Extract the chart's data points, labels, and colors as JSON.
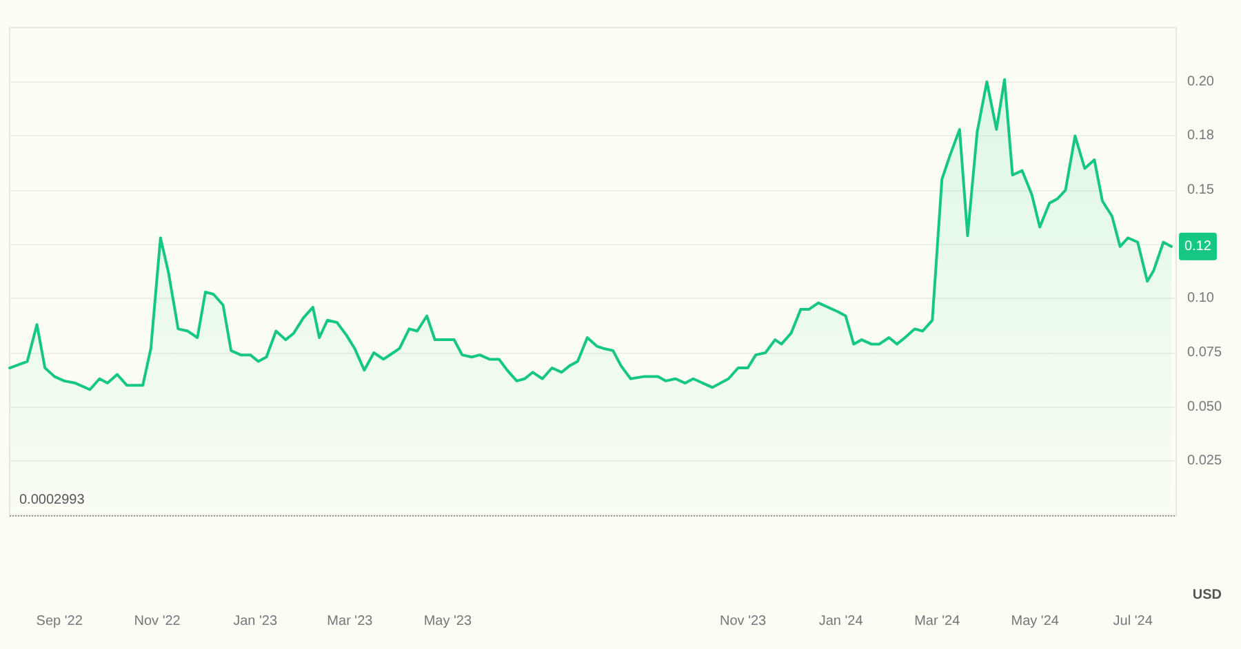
{
  "chart_data": {
    "type": "area",
    "x": [
      "2022-08-01",
      "2022-08-12",
      "2022-08-18",
      "2022-08-23",
      "2022-08-29",
      "2022-09-04",
      "2022-09-11",
      "2022-09-20",
      "2022-09-26",
      "2022-10-01",
      "2022-10-07",
      "2022-10-13",
      "2022-10-18",
      "2022-10-23",
      "2022-10-28",
      "2022-11-03",
      "2022-11-08",
      "2022-11-14",
      "2022-11-20",
      "2022-11-26",
      "2022-12-01",
      "2022-12-06",
      "2022-12-12",
      "2022-12-17",
      "2022-12-23",
      "2022-12-29",
      "2023-01-03",
      "2023-01-08",
      "2023-01-14",
      "2023-01-20",
      "2023-01-25",
      "2023-01-31",
      "2023-02-06",
      "2023-02-10",
      "2023-02-15",
      "2023-02-21",
      "2023-02-27",
      "2023-03-04",
      "2023-03-10",
      "2023-03-16",
      "2023-03-22",
      "2023-03-28",
      "2023-04-01",
      "2023-04-07",
      "2023-04-12",
      "2023-04-18",
      "2023-04-23",
      "2023-04-29",
      "2023-05-05",
      "2023-05-10",
      "2023-05-16",
      "2023-05-21",
      "2023-05-27",
      "2023-06-02",
      "2023-06-07",
      "2023-06-13",
      "2023-06-18",
      "2023-06-23",
      "2023-06-29",
      "2023-07-05",
      "2023-07-11",
      "2023-07-16",
      "2023-07-21",
      "2023-07-27",
      "2023-08-02",
      "2023-08-06",
      "2023-08-12",
      "2023-08-17",
      "2023-08-23",
      "2023-08-31",
      "2023-09-09",
      "2023-09-14",
      "2023-09-20",
      "2023-09-26",
      "2023-10-01",
      "2023-10-07",
      "2023-10-13",
      "2023-10-23",
      "2023-10-29",
      "2023-11-04",
      "2023-11-09",
      "2023-11-15",
      "2023-11-21",
      "2023-11-25",
      "2023-12-01",
      "2023-12-07",
      "2023-12-12",
      "2023-12-18",
      "2023-12-30",
      "2024-01-04",
      "2024-01-09",
      "2024-01-14",
      "2024-01-20",
      "2024-01-25",
      "2024-01-31",
      "2024-02-05",
      "2024-02-10",
      "2024-02-16",
      "2024-02-21",
      "2024-02-27",
      "2024-03-04",
      "2024-03-09",
      "2024-03-15",
      "2024-03-20",
      "2024-03-26",
      "2024-04-01",
      "2024-04-07",
      "2024-04-12",
      "2024-04-17",
      "2024-04-23",
      "2024-04-29",
      "2024-05-04",
      "2024-05-10",
      "2024-05-15",
      "2024-05-20",
      "2024-05-26",
      "2024-06-01",
      "2024-06-07",
      "2024-06-12",
      "2024-06-18",
      "2024-06-23",
      "2024-06-28",
      "2024-07-04",
      "2024-07-10",
      "2024-07-14",
      "2024-07-20",
      "2024-07-25"
    ],
    "series": [
      {
        "color": "#16c784",
        "values": [
          0.068,
          0.071,
          0.088,
          0.068,
          0.064,
          0.062,
          0.061,
          0.058,
          0.063,
          0.061,
          0.065,
          0.06,
          0.06,
          0.06,
          0.077,
          0.128,
          0.112,
          0.086,
          0.085,
          0.082,
          0.103,
          0.102,
          0.097,
          0.076,
          0.074,
          0.074,
          0.071,
          0.073,
          0.085,
          0.081,
          0.084,
          0.091,
          0.096,
          0.082,
          0.09,
          0.089,
          0.083,
          0.077,
          0.067,
          0.075,
          0.072,
          0.075,
          0.077,
          0.086,
          0.085,
          0.092,
          0.081,
          0.081,
          0.081,
          0.074,
          0.073,
          0.074,
          0.072,
          0.072,
          0.067,
          0.062,
          0.063,
          0.066,
          0.063,
          0.068,
          0.066,
          0.069,
          0.071,
          0.082,
          0.078,
          0.077,
          0.076,
          0.069,
          0.063,
          0.064,
          0.064,
          0.062,
          0.063,
          0.061,
          0.063,
          0.061,
          0.059,
          0.063,
          0.068,
          0.068,
          0.074,
          0.075,
          0.081,
          0.079,
          0.084,
          0.095,
          0.095,
          0.098,
          0.094,
          0.092,
          0.079,
          0.081,
          0.079,
          0.079,
          0.082,
          0.079,
          0.082,
          0.086,
          0.085,
          0.09,
          0.155,
          0.166,
          0.178,
          0.129,
          0.177,
          0.2,
          0.178,
          0.201,
          0.157,
          0.159,
          0.148,
          0.133,
          0.144,
          0.146,
          0.15,
          0.175,
          0.16,
          0.164,
          0.145,
          0.138,
          0.124,
          0.128,
          0.126,
          0.108,
          0.113,
          0.126,
          0.124
        ]
      }
    ],
    "xlim": [
      "2022-08-01",
      "2024-07-28"
    ],
    "xticks": [
      {
        "value": "2022-09-01",
        "label": "Sep '22"
      },
      {
        "value": "2022-11-01",
        "label": "Nov '22"
      },
      {
        "value": "2023-01-01",
        "label": "Jan '23"
      },
      {
        "value": "2023-03-01",
        "label": "Mar '23"
      },
      {
        "value": "2023-05-01",
        "label": "May '23"
      },
      {
        "value": "2023-11-01",
        "label": "Nov '23"
      },
      {
        "value": "2024-01-01",
        "label": "Jan '24"
      },
      {
        "value": "2024-03-01",
        "label": "Mar '24"
      },
      {
        "value": "2024-05-01",
        "label": "May '24"
      },
      {
        "value": "2024-07-01",
        "label": "Jul '24"
      }
    ],
    "ylim": [
      0,
      0.225
    ],
    "yticks": [
      {
        "value": 0.025,
        "label": "0.025"
      },
      {
        "value": 0.05,
        "label": "0.050"
      },
      {
        "value": 0.075,
        "label": "0.075"
      },
      {
        "value": 0.1,
        "label": "0.10"
      },
      {
        "value": 0.125,
        "label": null
      },
      {
        "value": 0.15,
        "label": "0.15"
      },
      {
        "value": 0.175,
        "label": "0.18"
      },
      {
        "value": 0.2,
        "label": "0.20"
      }
    ],
    "ref_lines": [
      {
        "axis": "y",
        "value": 0.0002993,
        "label": "0.0002993",
        "line_style": "dotted"
      }
    ],
    "annotations": [
      {
        "text": "0.12",
        "x": "2024-07-25",
        "y": 0.124
      },
      "USD"
    ],
    "grid": "y",
    "marker": "none",
    "line_style": "solid"
  }
}
